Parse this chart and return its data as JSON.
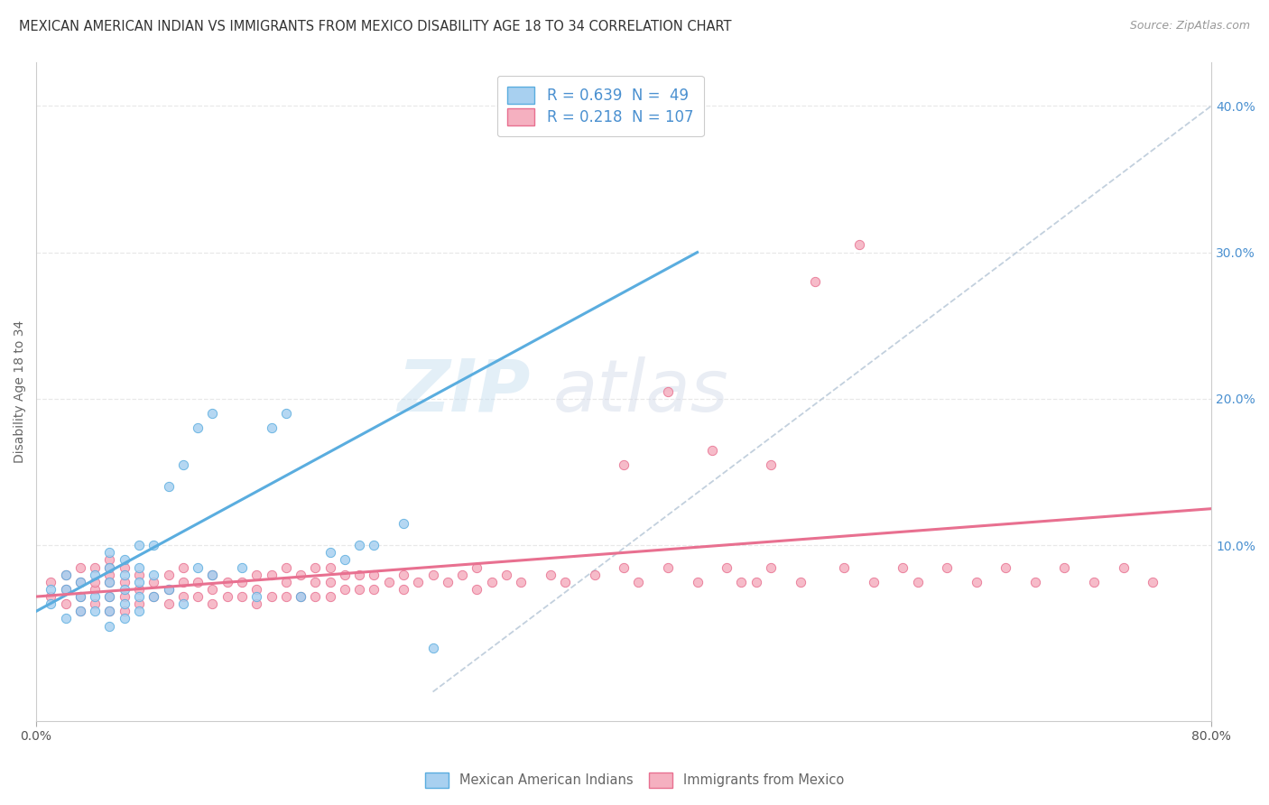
{
  "title": "MEXICAN AMERICAN INDIAN VS IMMIGRANTS FROM MEXICO DISABILITY AGE 18 TO 34 CORRELATION CHART",
  "source": "Source: ZipAtlas.com",
  "ylabel": "Disability Age 18 to 34",
  "right_yticks": [
    "40.0%",
    "30.0%",
    "20.0%",
    "10.0%"
  ],
  "right_ytick_vals": [
    0.4,
    0.3,
    0.2,
    0.1
  ],
  "xlim": [
    0.0,
    0.8
  ],
  "ylim": [
    -0.02,
    0.43
  ],
  "legend_label1": "R = 0.639  N =  49",
  "legend_label2": "R = 0.218  N = 107",
  "watermark_zip": "ZIP",
  "watermark_atlas": "atlas",
  "series1_fill": "#a8d0f0",
  "series2_fill": "#f5b0c0",
  "line1_color": "#5aaddf",
  "line2_color": "#e87090",
  "line_dashed_color": "#b8c8d8",
  "grid_color": "#e8e8e8",
  "background_color": "#ffffff",
  "legend_text_color": "#4a90d0",
  "right_axis_color": "#4a90d0",
  "bottom_legend_color": "#666666",
  "series1_x": [
    0.01,
    0.01,
    0.02,
    0.02,
    0.02,
    0.03,
    0.03,
    0.03,
    0.04,
    0.04,
    0.04,
    0.05,
    0.05,
    0.05,
    0.05,
    0.05,
    0.05,
    0.06,
    0.06,
    0.06,
    0.06,
    0.06,
    0.07,
    0.07,
    0.07,
    0.07,
    0.07,
    0.08,
    0.08,
    0.08,
    0.09,
    0.09,
    0.1,
    0.1,
    0.11,
    0.11,
    0.12,
    0.12,
    0.14,
    0.15,
    0.16,
    0.17,
    0.18,
    0.2,
    0.21,
    0.22,
    0.23,
    0.25,
    0.27
  ],
  "series1_y": [
    0.06,
    0.07,
    0.05,
    0.07,
    0.08,
    0.055,
    0.065,
    0.075,
    0.055,
    0.065,
    0.08,
    0.045,
    0.055,
    0.065,
    0.075,
    0.085,
    0.095,
    0.05,
    0.06,
    0.07,
    0.08,
    0.09,
    0.055,
    0.065,
    0.075,
    0.085,
    0.1,
    0.065,
    0.08,
    0.1,
    0.07,
    0.14,
    0.06,
    0.155,
    0.085,
    0.18,
    0.08,
    0.19,
    0.085,
    0.065,
    0.18,
    0.19,
    0.065,
    0.095,
    0.09,
    0.1,
    0.1,
    0.115,
    0.03
  ],
  "series2_x": [
    0.01,
    0.01,
    0.02,
    0.02,
    0.02,
    0.03,
    0.03,
    0.03,
    0.03,
    0.04,
    0.04,
    0.04,
    0.04,
    0.05,
    0.05,
    0.05,
    0.05,
    0.05,
    0.05,
    0.06,
    0.06,
    0.06,
    0.06,
    0.07,
    0.07,
    0.07,
    0.08,
    0.08,
    0.09,
    0.09,
    0.09,
    0.1,
    0.1,
    0.1,
    0.11,
    0.11,
    0.12,
    0.12,
    0.12,
    0.13,
    0.13,
    0.14,
    0.14,
    0.15,
    0.15,
    0.15,
    0.16,
    0.16,
    0.17,
    0.17,
    0.17,
    0.18,
    0.18,
    0.19,
    0.19,
    0.19,
    0.2,
    0.2,
    0.2,
    0.21,
    0.21,
    0.22,
    0.22,
    0.23,
    0.23,
    0.24,
    0.25,
    0.25,
    0.26,
    0.27,
    0.28,
    0.29,
    0.3,
    0.3,
    0.31,
    0.32,
    0.33,
    0.35,
    0.36,
    0.38,
    0.4,
    0.41,
    0.43,
    0.45,
    0.47,
    0.48,
    0.5,
    0.52,
    0.55,
    0.57,
    0.59,
    0.6,
    0.62,
    0.64,
    0.66,
    0.68,
    0.7,
    0.72,
    0.74,
    0.76,
    0.5,
    0.53,
    0.56,
    0.4,
    0.43,
    0.46,
    0.49
  ],
  "series2_y": [
    0.065,
    0.075,
    0.06,
    0.07,
    0.08,
    0.055,
    0.065,
    0.075,
    0.085,
    0.06,
    0.07,
    0.075,
    0.085,
    0.055,
    0.065,
    0.075,
    0.08,
    0.085,
    0.09,
    0.055,
    0.065,
    0.075,
    0.085,
    0.06,
    0.07,
    0.08,
    0.065,
    0.075,
    0.06,
    0.07,
    0.08,
    0.065,
    0.075,
    0.085,
    0.065,
    0.075,
    0.06,
    0.07,
    0.08,
    0.065,
    0.075,
    0.065,
    0.075,
    0.06,
    0.07,
    0.08,
    0.065,
    0.08,
    0.065,
    0.075,
    0.085,
    0.065,
    0.08,
    0.065,
    0.075,
    0.085,
    0.065,
    0.075,
    0.085,
    0.07,
    0.08,
    0.07,
    0.08,
    0.07,
    0.08,
    0.075,
    0.07,
    0.08,
    0.075,
    0.08,
    0.075,
    0.08,
    0.07,
    0.085,
    0.075,
    0.08,
    0.075,
    0.08,
    0.075,
    0.08,
    0.085,
    0.075,
    0.085,
    0.075,
    0.085,
    0.075,
    0.085,
    0.075,
    0.085,
    0.075,
    0.085,
    0.075,
    0.085,
    0.075,
    0.085,
    0.075,
    0.085,
    0.075,
    0.085,
    0.075,
    0.155,
    0.28,
    0.305,
    0.155,
    0.205,
    0.165,
    0.075
  ]
}
